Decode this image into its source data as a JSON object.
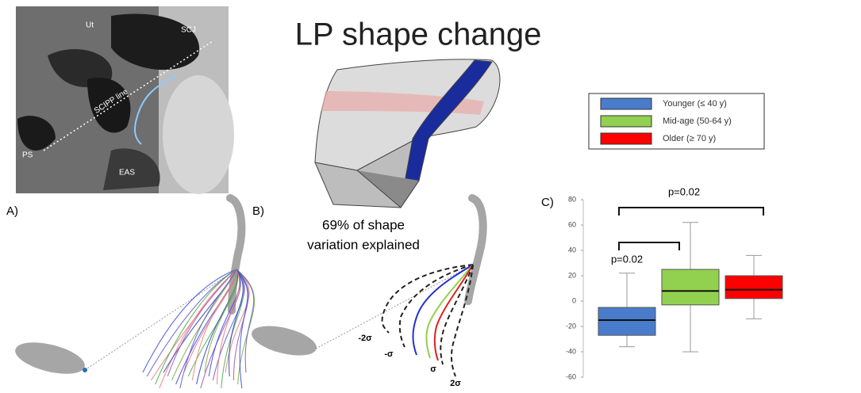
{
  "title": "LP shape change",
  "mri_labels": {
    "ut": "Ut",
    "scj": "SCJ",
    "scipp": "SCIPP line",
    "ps": "PS",
    "eas": "EAS"
  },
  "panel_a": {
    "label": "A)"
  },
  "panel_b": {
    "label": "B)",
    "note_lines": [
      "69% of shape",
      "variation explained"
    ],
    "sigma_labels": [
      "-2σ",
      "-σ",
      "σ",
      "2σ"
    ]
  },
  "chart_data": {
    "type": "box",
    "panel_label": "C)",
    "series": [
      {
        "name": "Younger (≤ 40 y)",
        "color": "#4a7ccc",
        "values": {
          "min": -36,
          "q1": -27,
          "median": -15,
          "q3": -5,
          "max": 22
        }
      },
      {
        "name": "Mid-age (50-64 y)",
        "color": "#92d050",
        "values": {
          "min": -40,
          "q1": -3,
          "median": 8,
          "q3": 25,
          "max": 62
        }
      },
      {
        "name": "Older (≥ 70 y)",
        "color": "#ff0000",
        "values": {
          "min": -14,
          "q1": 2,
          "median": 9,
          "q3": 20,
          "max": 36
        }
      }
    ],
    "ylim": [
      -60,
      80
    ],
    "yticks": [
      -60,
      -40,
      -20,
      0,
      20,
      40,
      60,
      80
    ],
    "annotations": [
      "p=0.02",
      "p=0.02"
    ]
  }
}
